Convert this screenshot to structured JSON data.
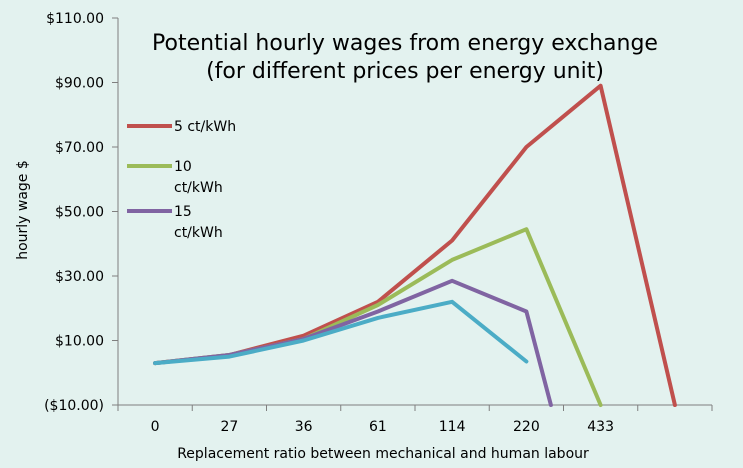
{
  "chart_data": {
    "type": "line",
    "title_lines": [
      "Potential hourly wages from energy exchange",
      "(for different prices per energy unit)"
    ],
    "xlabel": "Replacement ratio between mechanical and human labour",
    "ylabel": "hourly wage $",
    "categories": [
      "0",
      "27",
      "36",
      "61",
      "114",
      "220",
      "433"
    ],
    "ytick_labels": [
      "$110.00",
      "$90.00",
      "$70.00",
      "$50.00",
      "$30.00",
      "$10.00",
      "($10.00)"
    ],
    "ytick_values": [
      110,
      90,
      70,
      50,
      30,
      10,
      -10
    ],
    "ylim": [
      -10,
      110
    ],
    "grid": false,
    "legend_position": "top-left",
    "legend_entries": [
      {
        "lines": [
          "5 ct/kWh"
        ],
        "color": "#c0504d"
      },
      {
        "lines": [
          "10",
          "ct/kWh"
        ],
        "color": "#9bbb59"
      },
      {
        "lines": [
          "15",
          "ct/kWh"
        ],
        "color": "#8064a2"
      }
    ],
    "series": [
      {
        "name": "5 ct/kWh",
        "color": "#c0504d",
        "points": [
          [
            0,
            3
          ],
          [
            1,
            5.5
          ],
          [
            2,
            11.5
          ],
          [
            3,
            22
          ],
          [
            4,
            41
          ],
          [
            5,
            70
          ],
          [
            6,
            89
          ],
          [
            7,
            -10
          ]
        ]
      },
      {
        "name": "10 ct/kWh",
        "color": "#9bbb59",
        "points": [
          [
            0,
            3
          ],
          [
            1,
            5.5
          ],
          [
            2,
            10.5
          ],
          [
            3,
            21
          ],
          [
            4,
            35
          ],
          [
            5,
            44.5
          ],
          [
            6,
            -10
          ]
        ]
      },
      {
        "name": "15 ct/kWh",
        "color": "#8064a2",
        "points": [
          [
            0,
            3
          ],
          [
            1,
            5.5
          ],
          [
            2,
            10.5
          ],
          [
            3,
            19
          ],
          [
            4,
            28.5
          ],
          [
            5,
            19
          ],
          [
            5.33,
            -10
          ]
        ]
      },
      {
        "color": "#4bacc6",
        "points": [
          [
            0,
            3
          ],
          [
            1,
            5
          ],
          [
            2,
            10
          ],
          [
            3,
            17
          ],
          [
            4,
            22
          ],
          [
            5,
            3.5
          ]
        ]
      }
    ],
    "tick_color": "#000000",
    "negative_tick_color": "#c00000",
    "axis_color": "#7f7f7f"
  }
}
